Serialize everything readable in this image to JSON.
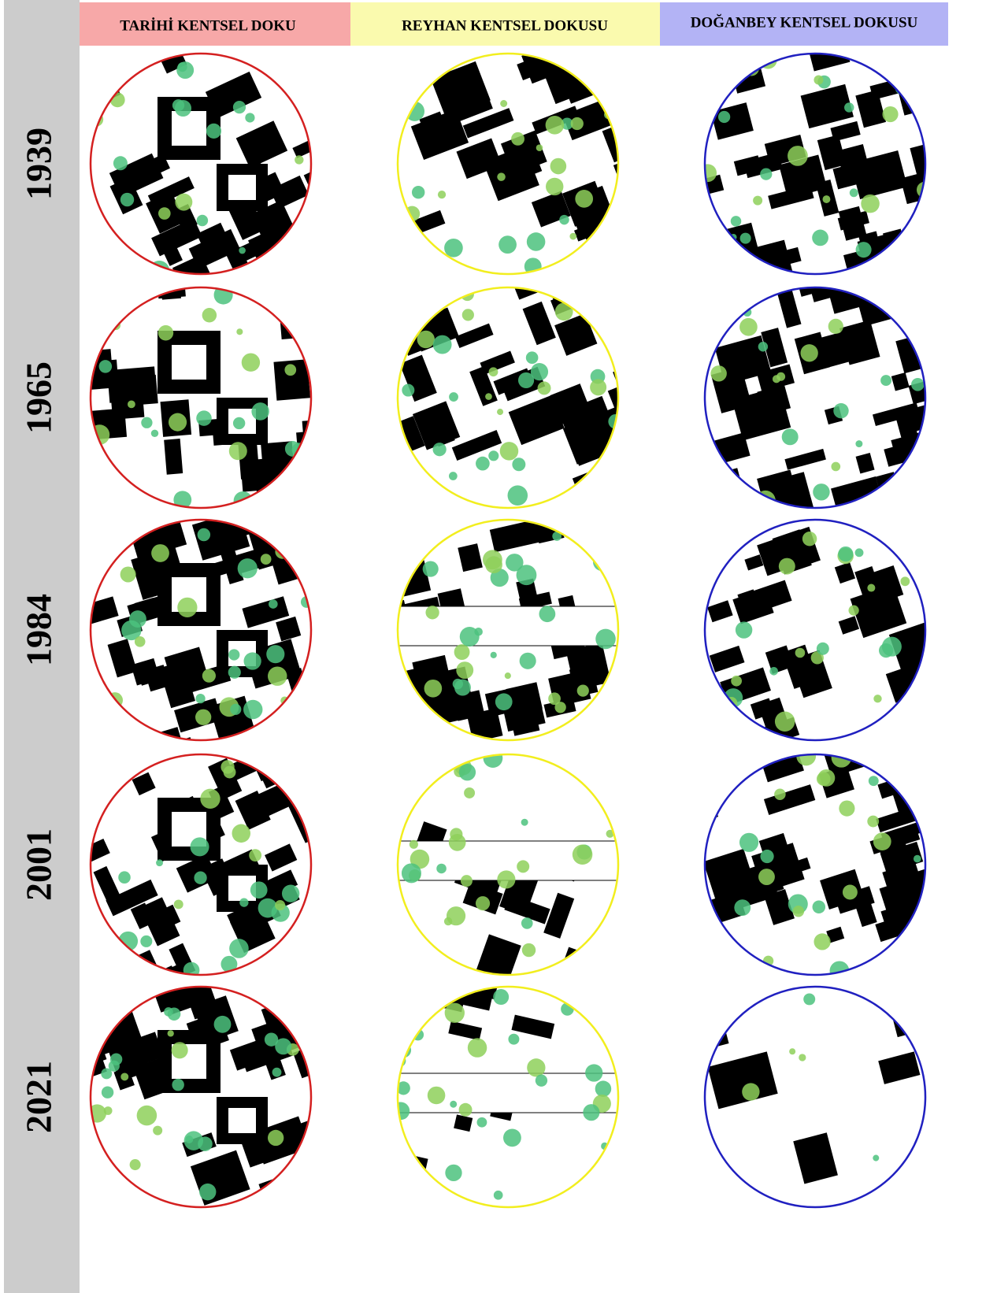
{
  "columns": [
    "TARİHİ KENTSEL DOKU",
    "REYHAN KENTSEL DOKUSU",
    "DOĞANBEY KENTSEL DOKUSU"
  ],
  "years": [
    "1939",
    "1965",
    "1984",
    "2001",
    "2021"
  ]
}
